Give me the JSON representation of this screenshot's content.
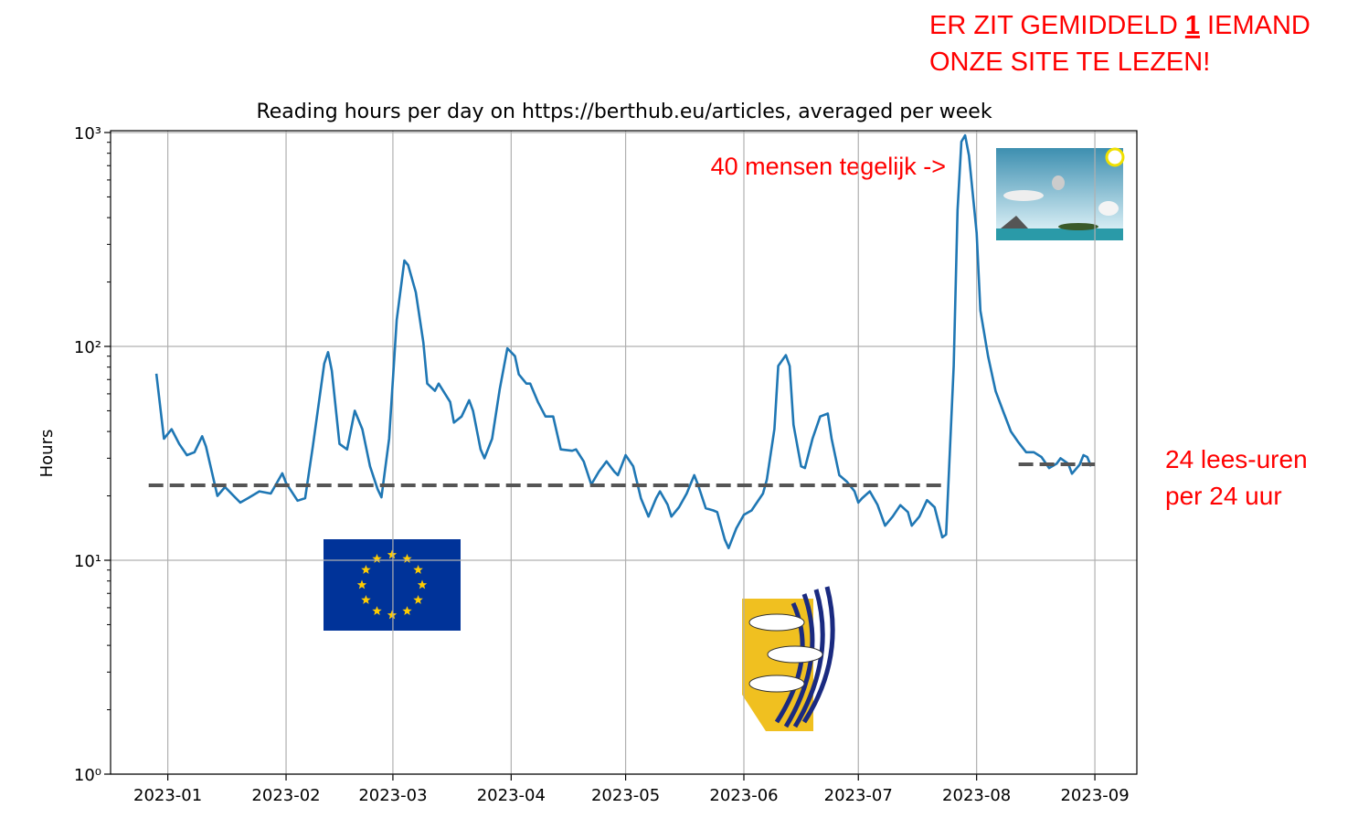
{
  "chart_data": {
    "type": "line",
    "title": "Reading hours per day on https://berthub.eu/articles, averaged per week",
    "y_label": "Hours",
    "log_y": true,
    "grid": true,
    "xlim": [
      "2022-12-17",
      "2023-09-12"
    ],
    "xticks": [
      "2023-01",
      "2023-02",
      "2023-03",
      "2023-04",
      "2023-05",
      "2023-06",
      "2023-07",
      "2023-08",
      "2023-09"
    ],
    "ylim": [
      1,
      1000
    ],
    "yticks": [
      {
        "value": 1,
        "label": "10⁰"
      },
      {
        "value": 10,
        "label": "10¹"
      },
      {
        "value": 100,
        "label": "10²"
      },
      {
        "value": 1000,
        "label": "10³"
      }
    ],
    "minor_yticks": [
      2,
      3,
      4,
      5,
      6,
      7,
      8,
      9,
      20,
      30,
      40,
      50,
      60,
      70,
      80,
      90,
      200,
      300,
      400,
      500,
      600,
      700,
      800,
      900
    ],
    "series": [
      {
        "color": "#1f77b4",
        "style": "solid",
        "x": [
          "2022-12-29",
          "2022-12-31",
          "2023-01-02",
          "2023-01-04",
          "2023-01-06",
          "2023-01-08",
          "2023-01-10",
          "2023-01-11",
          "2023-01-14",
          "2023-01-16",
          "2023-01-20",
          "2023-01-22",
          "2023-01-25",
          "2023-01-28",
          "2023-01-31",
          "2023-02-01",
          "2023-02-04",
          "2023-02-06",
          "2023-02-08",
          "2023-02-11",
          "2023-02-12",
          "2023-02-13",
          "2023-02-15",
          "2023-02-17",
          "2023-02-19",
          "2023-02-21",
          "2023-02-23",
          "2023-02-25",
          "2023-02-26",
          "2023-02-28",
          "2023-03-02",
          "2023-03-04",
          "2023-03-05",
          "2023-03-07",
          "2023-03-09",
          "2023-03-10",
          "2023-03-12",
          "2023-03-13",
          "2023-03-16",
          "2023-03-17",
          "2023-03-19",
          "2023-03-21",
          "2023-03-22",
          "2023-03-24",
          "2023-03-25",
          "2023-03-27",
          "2023-03-29",
          "2023-03-31",
          "2023-04-02",
          "2023-04-03",
          "2023-04-05",
          "2023-04-06",
          "2023-04-08",
          "2023-04-10",
          "2023-04-12",
          "2023-04-14",
          "2023-04-17",
          "2023-04-18",
          "2023-04-20",
          "2023-04-22",
          "2023-04-24",
          "2023-04-26",
          "2023-04-28",
          "2023-04-29",
          "2023-05-01",
          "2023-05-03",
          "2023-05-05",
          "2023-05-07",
          "2023-05-09",
          "2023-05-10",
          "2023-05-12",
          "2023-05-13",
          "2023-05-15",
          "2023-05-17",
          "2023-05-19",
          "2023-05-20",
          "2023-05-22",
          "2023-05-24",
          "2023-05-25",
          "2023-05-27",
          "2023-05-28",
          "2023-05-30",
          "2023-06-01",
          "2023-06-03",
          "2023-06-06",
          "2023-06-07",
          "2023-06-09",
          "2023-06-10",
          "2023-06-12",
          "2023-06-13",
          "2023-06-14",
          "2023-06-16",
          "2023-06-17",
          "2023-06-19",
          "2023-06-21",
          "2023-06-23",
          "2023-06-24",
          "2023-06-26",
          "2023-06-28",
          "2023-06-30",
          "2023-07-01",
          "2023-07-02",
          "2023-07-04",
          "2023-07-06",
          "2023-07-08",
          "2023-07-10",
          "2023-07-12",
          "2023-07-14",
          "2023-07-15",
          "2023-07-17",
          "2023-07-19",
          "2023-07-21",
          "2023-07-23",
          "2023-07-24",
          "2023-07-26",
          "2023-07-27",
          "2023-07-28",
          "2023-07-29",
          "2023-07-30",
          "2023-08-01",
          "2023-08-02",
          "2023-08-04",
          "2023-08-06",
          "2023-08-08",
          "2023-08-10",
          "2023-08-12",
          "2023-08-14",
          "2023-08-16",
          "2023-08-18",
          "2023-08-20",
          "2023-08-22",
          "2023-08-23",
          "2023-08-25",
          "2023-08-26",
          "2023-08-28",
          "2023-08-29",
          "2023-08-30",
          "2023-08-31"
        ],
        "values": [
          74.5,
          37,
          41,
          35,
          31,
          32,
          38,
          34,
          20,
          22,
          18.6,
          19.5,
          21,
          20.5,
          25.5,
          23,
          19,
          19.5,
          34,
          83,
          94,
          77,
          35,
          33,
          50,
          41,
          27.5,
          21.5,
          19.7,
          37,
          133,
          252,
          240,
          179,
          104,
          67,
          62,
          67,
          55,
          44,
          47,
          56,
          50,
          33,
          30,
          37,
          63,
          98,
          90,
          74,
          67,
          67,
          55,
          47,
          47,
          33,
          32.5,
          33,
          29,
          22.6,
          26,
          29,
          26,
          25,
          31,
          27.5,
          19.5,
          16,
          19.5,
          21,
          18.2,
          16,
          17.7,
          20.5,
          25,
          22.5,
          17.5,
          17.1,
          16.8,
          12.5,
          11.4,
          14.1,
          16.3,
          17.1,
          20.5,
          23.8,
          41,
          81,
          91,
          81,
          43,
          27.5,
          27,
          37,
          47,
          48.5,
          37,
          25,
          23.3,
          21,
          18.6,
          19.5,
          21,
          18.2,
          14.5,
          16,
          18.1,
          16.8,
          14.5,
          16,
          19.1,
          17.7,
          12.8,
          13.2,
          81,
          433,
          906,
          970,
          781,
          339,
          147,
          90,
          61.7,
          49.5,
          40,
          35.5,
          32,
          32,
          30.4,
          27,
          28.3,
          30,
          28.3,
          25.4,
          28,
          31,
          30.4,
          27.5
        ]
      },
      {
        "color": "#555555",
        "style": "dashed",
        "x": [
          "2022-12-27",
          "2023-07-23"
        ],
        "values": [
          22.4,
          22.4
        ]
      },
      {
        "color": "#555555",
        "style": "dashed",
        "x": [
          "2023-08-12",
          "2023-09-01"
        ],
        "values": [
          28.1,
          28.1
        ]
      }
    ],
    "annotations": {
      "headline_1a": "ER ZIT GEMIDDELD ",
      "headline_1b": "1",
      "headline_1c": " IEMAND",
      "headline_2": "ONZE SITE TE LEZEN!",
      "peak_note": "40 mensen tegelijk ->",
      "side_note_1": "24 lees-uren",
      "side_note_2": "per 24 uur"
    }
  }
}
